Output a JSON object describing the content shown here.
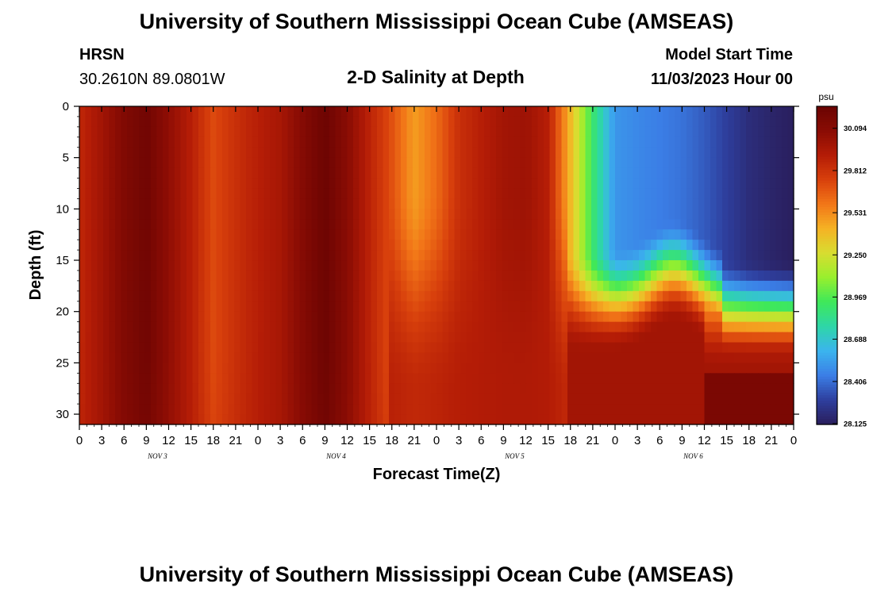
{
  "header": {
    "title": "University of Southern Mississippi Ocean Cube (AMSEAS)",
    "station": "HRSN",
    "coords": "30.2610N  89.0801W",
    "subtitle": "2-D Salinity at Depth",
    "model_label": "Model Start Time",
    "model_time": "11/03/2023 Hour 00"
  },
  "footer": {
    "title": "University of Southern Mississippi Ocean Cube (AMSEAS)"
  },
  "chart_data": {
    "type": "heatmap",
    "title": "2-D Salinity at Depth",
    "xlabel": "Forecast Time(Z)",
    "ylabel": "Depth (ft)",
    "x_tick_labels": [
      "0",
      "3",
      "6",
      "9",
      "12",
      "15",
      "18",
      "21",
      "0",
      "3",
      "6",
      "9",
      "12",
      "15",
      "18",
      "21",
      "0",
      "3",
      "6",
      "9",
      "12",
      "15",
      "18",
      "21",
      "0",
      "3",
      "6",
      "9",
      "12",
      "15",
      "18",
      "21",
      "0"
    ],
    "x_hours": [
      0,
      3,
      6,
      9,
      12,
      15,
      18,
      21,
      24,
      27,
      30,
      33,
      36,
      39,
      42,
      45,
      48,
      51,
      54,
      57,
      60,
      63,
      66,
      69,
      72,
      75,
      78,
      81,
      84,
      87,
      90,
      93,
      96
    ],
    "xlim": [
      0,
      96
    ],
    "date_labels": [
      {
        "label": "NOV 3",
        "hour": 10.5
      },
      {
        "label": "NOV 4",
        "hour": 34.5
      },
      {
        "label": "NOV 5",
        "hour": 58.5
      },
      {
        "label": "NOV 6",
        "hour": 82.5
      }
    ],
    "y_ticks": [
      0,
      5,
      10,
      15,
      20,
      25,
      30
    ],
    "ylim": [
      0,
      31
    ],
    "colorbar": {
      "unit": "psu",
      "range": [
        28.125,
        30.235
      ],
      "tick_values": [
        30.094,
        29.812,
        29.531,
        29.25,
        28.969,
        28.688,
        28.406,
        28.125
      ],
      "tick_labels": [
        "30.094",
        "29.812",
        "29.531",
        "29.250",
        "28.969",
        "28.688",
        "28.406",
        "28.125"
      ],
      "colormap": [
        "#2a1e5c",
        "#2e3f9e",
        "#3b7ee6",
        "#3bb4ee",
        "#2ed6a8",
        "#3ee85a",
        "#98ef2e",
        "#d8dd30",
        "#f5b224",
        "#f27618",
        "#d8400c",
        "#b41c06",
        "#8a0c04",
        "#6a0402"
      ]
    },
    "profiles_description": "surface salinity (psu) by forecast hour",
    "surface_salinity": [
      {
        "hour": 0,
        "value": 29.86
      },
      {
        "hour": 3,
        "value": 29.98
      },
      {
        "hour": 6,
        "value": 30.12
      },
      {
        "hour": 9,
        "value": 30.2
      },
      {
        "hour": 12,
        "value": 30.05
      },
      {
        "hour": 15,
        "value": 29.9
      },
      {
        "hour": 18,
        "value": 29.72
      },
      {
        "hour": 21,
        "value": 29.82
      },
      {
        "hour": 24,
        "value": 29.9
      },
      {
        "hour": 27,
        "value": 29.96
      },
      {
        "hour": 30,
        "value": 30.1
      },
      {
        "hour": 33,
        "value": 30.22
      },
      {
        "hour": 36,
        "value": 30.08
      },
      {
        "hour": 39,
        "value": 29.88
      },
      {
        "hour": 42,
        "value": 29.7
      },
      {
        "hour": 45,
        "value": 29.48
      },
      {
        "hour": 48,
        "value": 29.62
      },
      {
        "hour": 51,
        "value": 29.82
      },
      {
        "hour": 54,
        "value": 29.9
      },
      {
        "hour": 57,
        "value": 29.98
      },
      {
        "hour": 60,
        "value": 30.0
      },
      {
        "hour": 63,
        "value": 29.9
      },
      {
        "hour": 66,
        "value": 29.4
      },
      {
        "hour": 69,
        "value": 28.9
      },
      {
        "hour": 72,
        "value": 28.52
      },
      {
        "hour": 75,
        "value": 28.48
      },
      {
        "hour": 78,
        "value": 28.45
      },
      {
        "hour": 81,
        "value": 28.42
      },
      {
        "hour": 84,
        "value": 28.36
      },
      {
        "hour": 87,
        "value": 28.28
      },
      {
        "hour": 90,
        "value": 28.2
      },
      {
        "hour": 93,
        "value": 28.16
      },
      {
        "hour": 96,
        "value": 28.13
      }
    ]
  }
}
